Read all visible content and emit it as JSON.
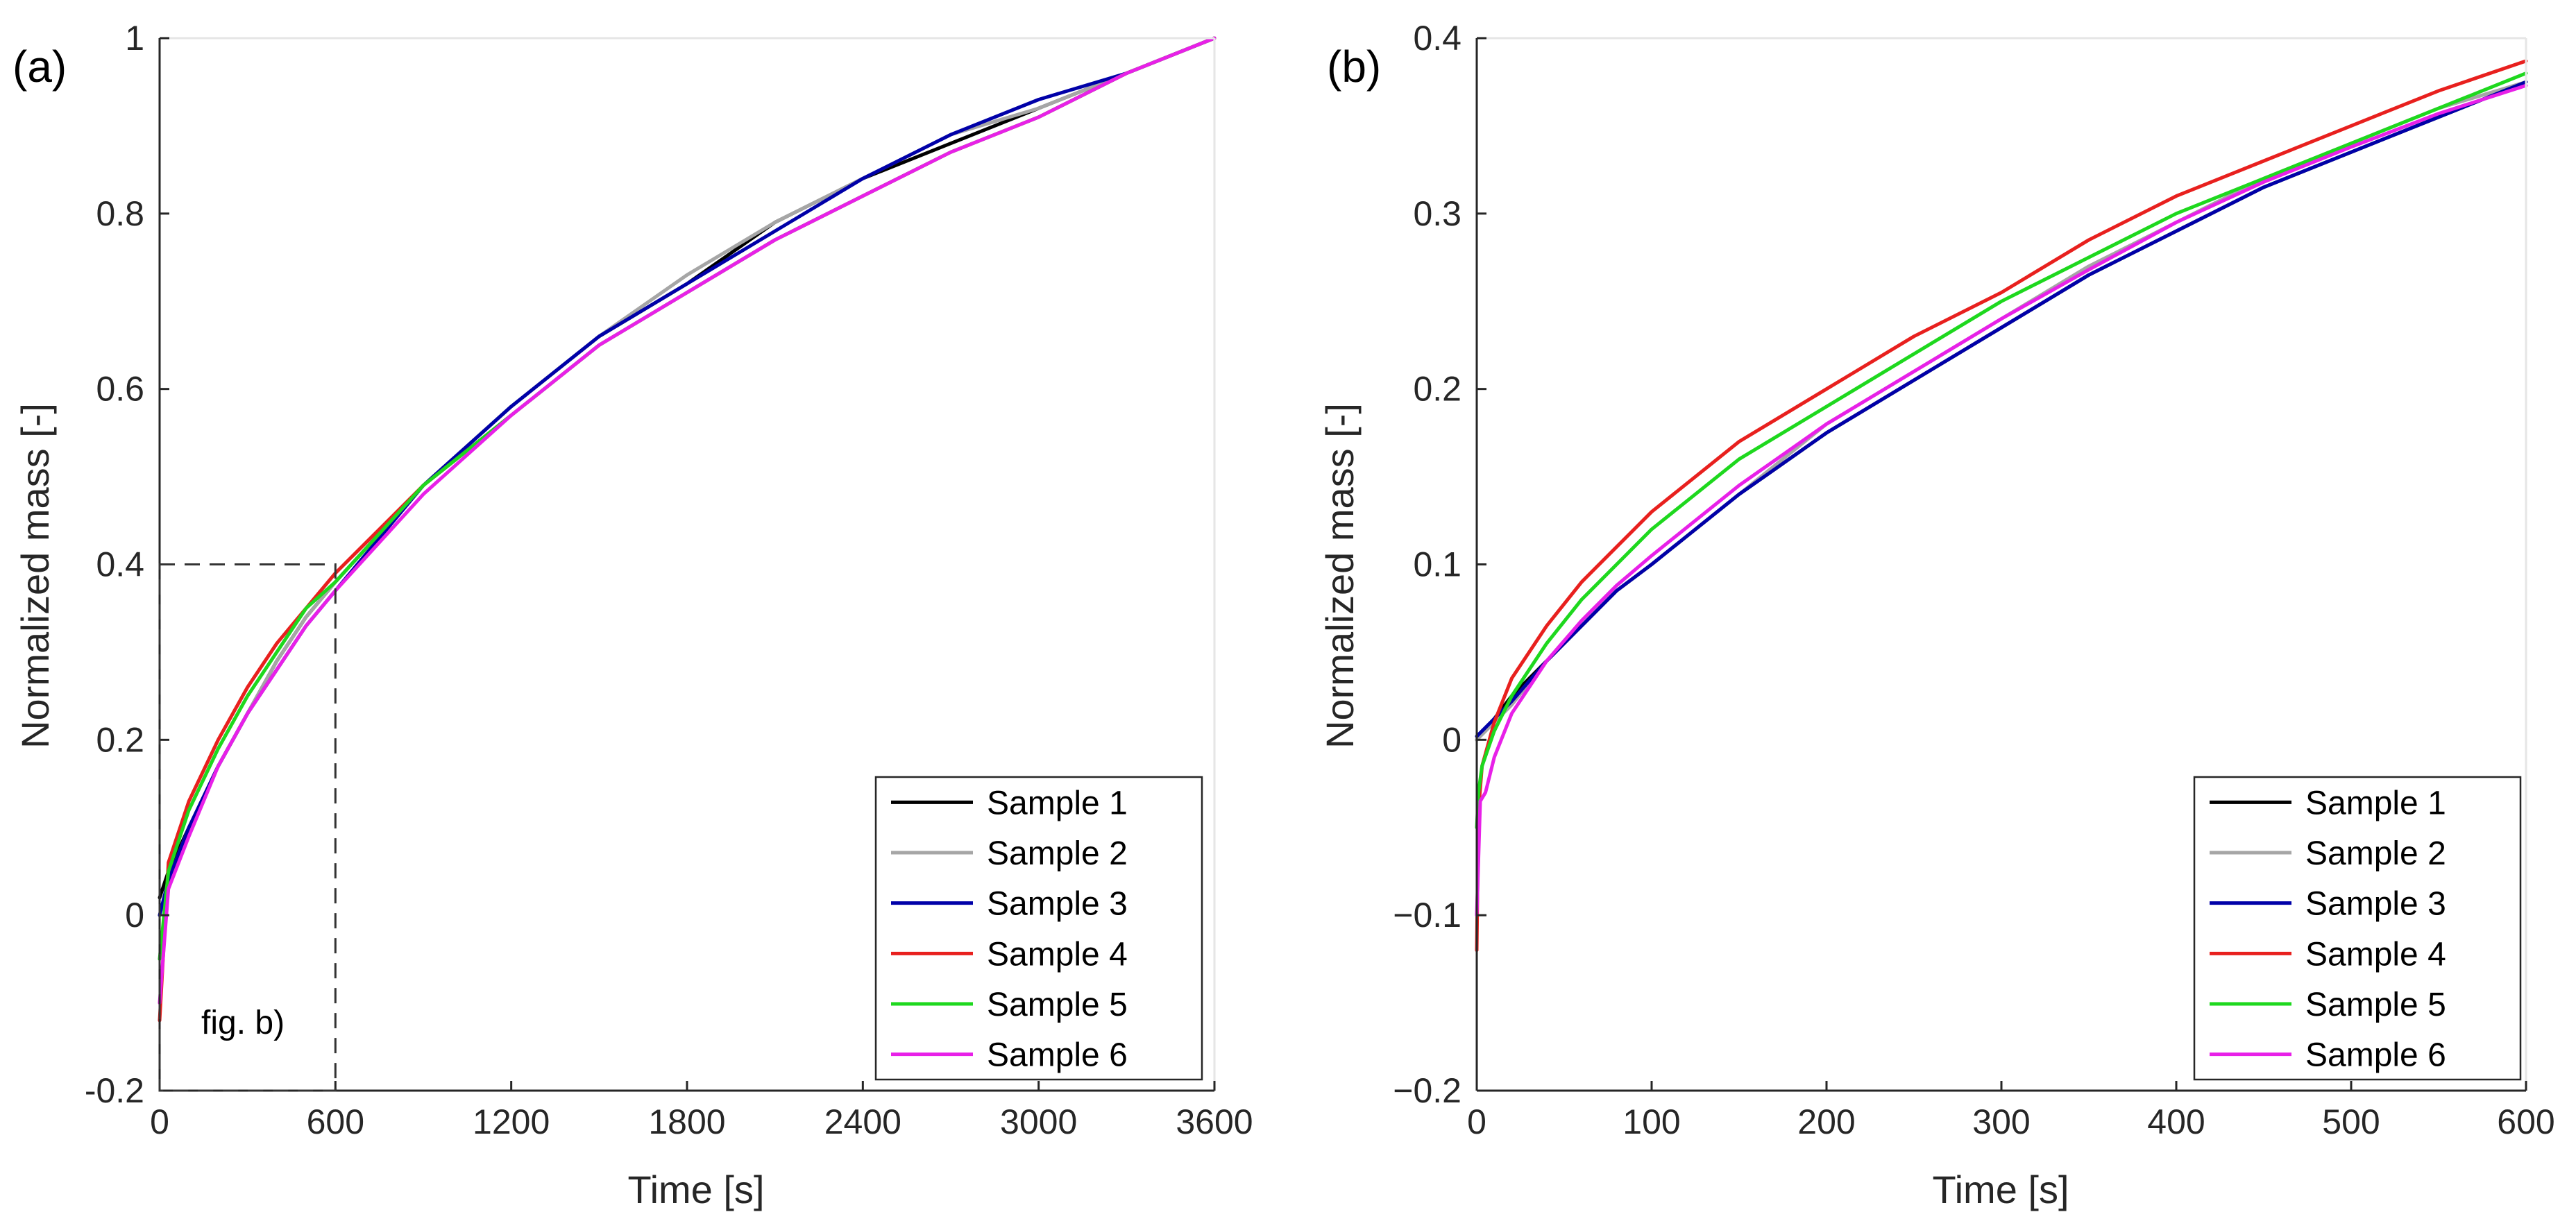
{
  "chart_data": [
    {
      "type": "line",
      "panel_label": "(a)",
      "xlabel": "Time [s]",
      "ylabel": "Normalized mass [-]",
      "xlim": [
        0,
        3600
      ],
      "ylim": [
        -0.2,
        1
      ],
      "xticks": [
        0,
        600,
        1200,
        1800,
        2400,
        3000,
        3600
      ],
      "xtick_labels": [
        "0",
        "600",
        "1200",
        "1800",
        "2400",
        "3000",
        "3600"
      ],
      "yticks": [
        -0.2,
        0,
        0.2,
        0.4,
        0.6,
        0.8,
        1
      ],
      "ytick_labels": [
        "-0.2",
        "0",
        "0.2",
        "0.4",
        "0.6",
        "0.8",
        "1"
      ],
      "legend_position": "bottom-right",
      "annotation": {
        "text": "fig. b)",
        "box_x": [
          0,
          600
        ],
        "box_y": [
          -0.2,
          0.4
        ]
      },
      "series": [
        {
          "name": "Sample 1",
          "color": "#000000",
          "x": [
            0,
            30,
            100,
            200,
            300,
            400,
            500,
            600,
            900,
            1200,
            1500,
            1800,
            2100,
            2400,
            2700,
            3000,
            3300,
            3600
          ],
          "y": [
            0.02,
            0.05,
            0.1,
            0.17,
            0.23,
            0.29,
            0.34,
            0.38,
            0.49,
            0.58,
            0.66,
            0.72,
            0.79,
            0.84,
            0.88,
            0.92,
            0.96,
            1.0
          ]
        },
        {
          "name": "Sample 2",
          "color": "#a6a6a6",
          "x": [
            0,
            30,
            100,
            200,
            300,
            400,
            500,
            600,
            900,
            1200,
            1500,
            1800,
            2100,
            2400,
            2700,
            3000,
            3300,
            3600
          ],
          "y": [
            0.0,
            0.04,
            0.1,
            0.17,
            0.23,
            0.29,
            0.34,
            0.38,
            0.49,
            0.58,
            0.66,
            0.73,
            0.79,
            0.84,
            0.89,
            0.92,
            0.96,
            1.0
          ]
        },
        {
          "name": "Sample 3",
          "color": "#0000a8",
          "x": [
            0,
            30,
            100,
            200,
            300,
            400,
            500,
            600,
            900,
            1200,
            1500,
            1800,
            2100,
            2400,
            2700,
            3000,
            3300,
            3600
          ],
          "y": [
            0.0,
            0.04,
            0.1,
            0.17,
            0.23,
            0.28,
            0.33,
            0.37,
            0.49,
            0.58,
            0.66,
            0.72,
            0.78,
            0.84,
            0.89,
            0.93,
            0.96,
            1.0
          ]
        },
        {
          "name": "Sample 4",
          "color": "#e8201e",
          "x": [
            0,
            30,
            100,
            200,
            300,
            400,
            500,
            600,
            900,
            1200,
            1500,
            1800,
            2100,
            2400,
            2700,
            3000,
            3300,
            3600
          ],
          "y": [
            -0.12,
            0.06,
            0.13,
            0.2,
            0.26,
            0.31,
            0.35,
            0.39,
            0.49,
            0.57,
            0.65,
            0.71,
            0.77,
            0.82,
            0.87,
            0.91,
            0.96,
            1.0
          ]
        },
        {
          "name": "Sample 5",
          "color": "#1ed81e",
          "x": [
            0,
            30,
            100,
            200,
            300,
            400,
            500,
            600,
            900,
            1200,
            1500,
            1800,
            2100,
            2400,
            2700,
            3000,
            3300,
            3600
          ],
          "y": [
            -0.05,
            0.05,
            0.12,
            0.19,
            0.25,
            0.3,
            0.35,
            0.38,
            0.49,
            0.57,
            0.65,
            0.71,
            0.77,
            0.82,
            0.87,
            0.91,
            0.96,
            1.0
          ]
        },
        {
          "name": "Sample 6",
          "color": "#e820e8",
          "x": [
            0,
            30,
            100,
            200,
            300,
            400,
            500,
            600,
            900,
            1200,
            1500,
            1800,
            2100,
            2400,
            2700,
            3000,
            3300,
            3600
          ],
          "y": [
            -0.1,
            0.03,
            0.09,
            0.17,
            0.23,
            0.28,
            0.33,
            0.37,
            0.48,
            0.57,
            0.65,
            0.71,
            0.77,
            0.82,
            0.87,
            0.91,
            0.96,
            1.0
          ]
        }
      ]
    },
    {
      "type": "line",
      "panel_label": "(b)",
      "xlabel": "Time [s]",
      "ylabel": "Normalized mass [-]",
      "xlim": [
        0,
        600
      ],
      "ylim": [
        -0.2,
        0.4
      ],
      "xticks": [
        0,
        100,
        200,
        300,
        400,
        500,
        600
      ],
      "xtick_labels": [
        "0",
        "100",
        "200",
        "300",
        "400",
        "500",
        "600"
      ],
      "yticks": [
        -0.2,
        -0.1,
        0,
        0.1,
        0.2,
        0.3,
        0.4
      ],
      "ytick_labels": [
        "−0.2",
        "−0.1",
        "0",
        "0.1",
        "0.2",
        "0.3",
        "0.4"
      ],
      "legend_position": "bottom-right",
      "series": [
        {
          "name": "Sample 1",
          "color": "#000000",
          "x": [
            0,
            10,
            20,
            40,
            60,
            80,
            100,
            150,
            200,
            250,
            300,
            350,
            400,
            450,
            500,
            550,
            600
          ],
          "y": [
            0.0,
            0.012,
            0.025,
            0.045,
            0.065,
            0.085,
            0.1,
            0.14,
            0.175,
            0.205,
            0.235,
            0.265,
            0.29,
            0.315,
            0.335,
            0.355,
            0.375
          ]
        },
        {
          "name": "Sample 2",
          "color": "#a6a6a6",
          "x": [
            0,
            10,
            20,
            40,
            60,
            80,
            100,
            150,
            200,
            250,
            300,
            350,
            400,
            450,
            500,
            550,
            600
          ],
          "y": [
            0.0,
            0.01,
            0.02,
            0.045,
            0.065,
            0.085,
            0.1,
            0.14,
            0.18,
            0.21,
            0.24,
            0.27,
            0.295,
            0.32,
            0.34,
            0.36,
            0.375
          ]
        },
        {
          "name": "Sample 3",
          "color": "#0000a8",
          "x": [
            0,
            10,
            20,
            40,
            60,
            80,
            100,
            150,
            200,
            250,
            300,
            350,
            400,
            450,
            500,
            550,
            600
          ],
          "y": [
            0.002,
            0.012,
            0.022,
            0.045,
            0.065,
            0.085,
            0.1,
            0.14,
            0.175,
            0.205,
            0.235,
            0.265,
            0.29,
            0.315,
            0.335,
            0.355,
            0.375
          ]
        },
        {
          "name": "Sample 4",
          "color": "#e8201e",
          "x": [
            0,
            1,
            3,
            10,
            20,
            40,
            60,
            80,
            100,
            150,
            200,
            250,
            300,
            350,
            400,
            450,
            500,
            550,
            600
          ],
          "y": [
            -0.12,
            -0.04,
            -0.015,
            0.01,
            0.035,
            0.065,
            0.09,
            0.11,
            0.13,
            0.17,
            0.2,
            0.23,
            0.255,
            0.285,
            0.31,
            0.33,
            0.35,
            0.37,
            0.387
          ]
        },
        {
          "name": "Sample 5",
          "color": "#1ed81e",
          "x": [
            0,
            1,
            3,
            10,
            20,
            40,
            60,
            80,
            100,
            150,
            200,
            250,
            300,
            350,
            400,
            450,
            500,
            550,
            600
          ],
          "y": [
            -0.05,
            -0.03,
            -0.015,
            0.005,
            0.025,
            0.055,
            0.08,
            0.1,
            0.12,
            0.16,
            0.19,
            0.22,
            0.25,
            0.275,
            0.3,
            0.32,
            0.34,
            0.36,
            0.38
          ]
        },
        {
          "name": "Sample 6",
          "color": "#e820e8",
          "x": [
            0,
            2,
            5,
            10,
            20,
            40,
            60,
            80,
            100,
            150,
            200,
            250,
            300,
            350,
            400,
            450,
            500,
            550,
            600
          ],
          "y": [
            -0.1,
            -0.035,
            -0.03,
            -0.01,
            0.015,
            0.045,
            0.068,
            0.088,
            0.105,
            0.145,
            0.18,
            0.21,
            0.24,
            0.268,
            0.295,
            0.318,
            0.338,
            0.357,
            0.373
          ]
        }
      ]
    }
  ]
}
